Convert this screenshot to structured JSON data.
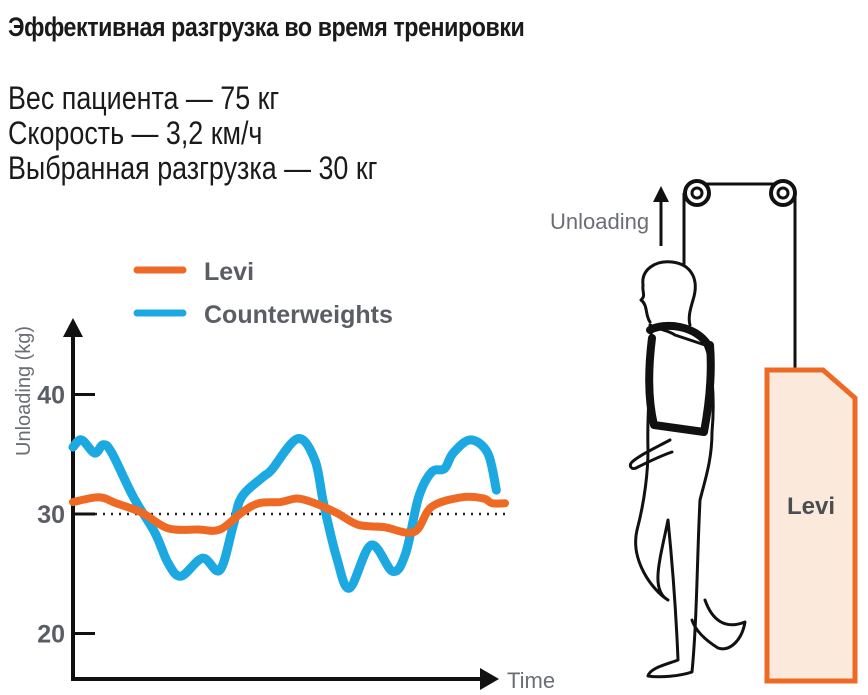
{
  "title": "Эффективная разгрузка во время тренировки",
  "info": [
    "Вес пациента — 75 кг",
    "Скорость — 3,2 км/ч",
    "Выбранная разгрузка — 30 кг"
  ],
  "diagram": {
    "unloading_label": "Unloading",
    "device_label": "Levi"
  },
  "colors": {
    "levi": "#ee6a24",
    "counterweights": "#1ca8e0",
    "device_fill": "#fbeadb"
  },
  "chart_data": {
    "type": "line",
    "title": "",
    "xlabel": "Time",
    "ylabel": "Unloading (kg)",
    "xlim": [
      0,
      100
    ],
    "ylim": [
      16,
      44
    ],
    "yticks": [
      20,
      30,
      40
    ],
    "ytick_labels": [
      "20",
      "30",
      "40"
    ],
    "reference_line": 30,
    "legend_position": "top-left",
    "series": [
      {
        "name": "Levi",
        "color": "#ee6a24",
        "x": [
          0,
          6,
          10,
          16,
          22,
          29,
          34,
          39,
          43,
          48,
          52,
          56,
          61,
          66,
          72,
          79,
          83,
          90,
          95,
          97,
          100
        ],
        "y": [
          31.0,
          31.4,
          30.9,
          30.1,
          28.8,
          28.7,
          28.7,
          30.1,
          30.9,
          31.0,
          31.3,
          30.9,
          30.1,
          29.1,
          28.9,
          28.5,
          30.6,
          31.4,
          31.3,
          30.9,
          30.9
        ]
      },
      {
        "name": "Counterweights",
        "color": "#1ca8e0",
        "x": [
          0,
          2,
          5,
          7,
          9,
          14,
          19,
          22,
          25,
          30,
          34,
          37,
          39,
          44,
          46,
          52,
          56,
          58,
          61,
          64,
          69,
          74,
          77,
          80,
          83,
          86,
          88,
          92,
          96,
          98
        ],
        "y": [
          35.6,
          36.2,
          35.1,
          35.8,
          35.1,
          31.4,
          28.4,
          25.9,
          24.8,
          26.3,
          25.3,
          28.9,
          31.4,
          33.1,
          33.7,
          36.3,
          34.5,
          30.9,
          26.4,
          23.8,
          27.4,
          25.2,
          26.7,
          31.4,
          33.5,
          33.8,
          35.1,
          36.2,
          35.1,
          32.0
        ]
      }
    ]
  }
}
